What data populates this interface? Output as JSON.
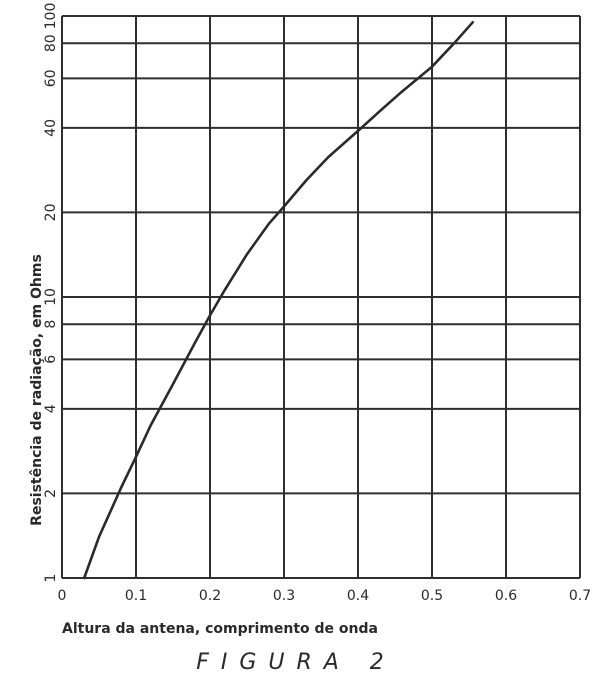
{
  "chart_data": {
    "type": "line",
    "title": "",
    "xlabel": "Altura da antena, comprimento de onda",
    "ylabel": "Resistência de radiação, em Ohms",
    "xlim": [
      0,
      0.7
    ],
    "ylim": [
      1,
      100
    ],
    "yscale": "log",
    "grid": true,
    "x_ticks": [
      0,
      0.1,
      0.2,
      0.3,
      0.4,
      0.5,
      0.6,
      0.7
    ],
    "x_tick_labels": [
      "0",
      "0.1",
      "0.2",
      "0.3",
      "0.4",
      "0.5",
      "0.6",
      "0.7"
    ],
    "y_ticks": [
      1,
      2,
      4,
      6,
      8,
      10,
      20,
      40,
      60,
      80,
      100
    ],
    "y_tick_labels": [
      "1",
      "2",
      "4",
      "6",
      "8",
      "10",
      "20",
      "40",
      "60",
      "80",
      "100"
    ],
    "series": [
      {
        "x": [
          0.03,
          0.05,
          0.08,
          0.1,
          0.12,
          0.15,
          0.18,
          0.2,
          0.22,
          0.25,
          0.28,
          0.3,
          0.33,
          0.36,
          0.4,
          0.43,
          0.46,
          0.5,
          0.53,
          0.555
        ],
        "y": [
          1.0,
          1.4,
          2.1,
          2.7,
          3.5,
          4.9,
          6.9,
          8.6,
          10.6,
          14.2,
          18.3,
          21.0,
          26.0,
          31.5,
          39.0,
          46.0,
          54.0,
          66.0,
          80.0,
          95.0
        ]
      }
    ]
  },
  "caption": "FIGURA 2"
}
